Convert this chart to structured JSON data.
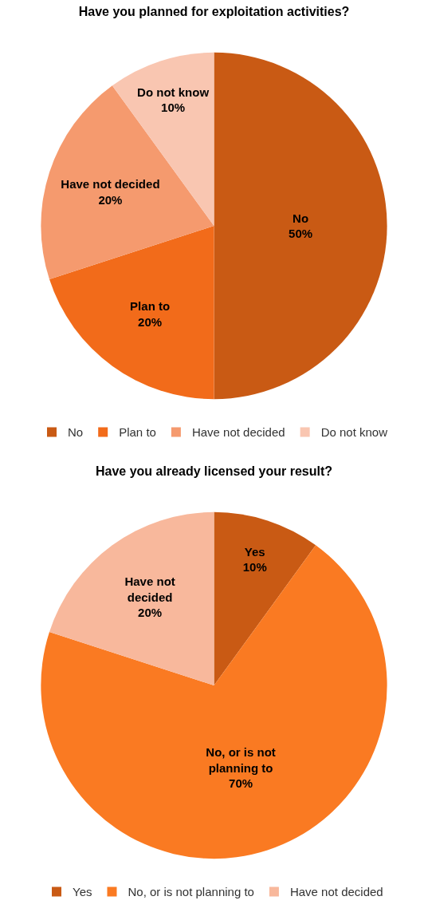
{
  "chart_data": [
    {
      "type": "pie",
      "title": "Have you planned for exploitation activities?",
      "categories": [
        "No",
        "Plan to",
        "Have not decided",
        "Do not know"
      ],
      "values": [
        50,
        20,
        20,
        10
      ],
      "value_labels": [
        "50%",
        "20%",
        "20%",
        "10%"
      ],
      "colors": [
        "#c95a14",
        "#f26b1a",
        "#f59a6e",
        "#f9c6b1"
      ],
      "legend": "bottom"
    },
    {
      "type": "pie",
      "title": "Have you already licensed your result?",
      "categories": [
        "Yes",
        "No, or is not planning to",
        "Have not decided"
      ],
      "values": [
        10,
        70,
        20
      ],
      "value_labels": [
        "10%",
        "70%",
        "20%"
      ],
      "colors": [
        "#c95a14",
        "#fa7a22",
        "#f8b89c"
      ],
      "legend": "bottom"
    }
  ]
}
